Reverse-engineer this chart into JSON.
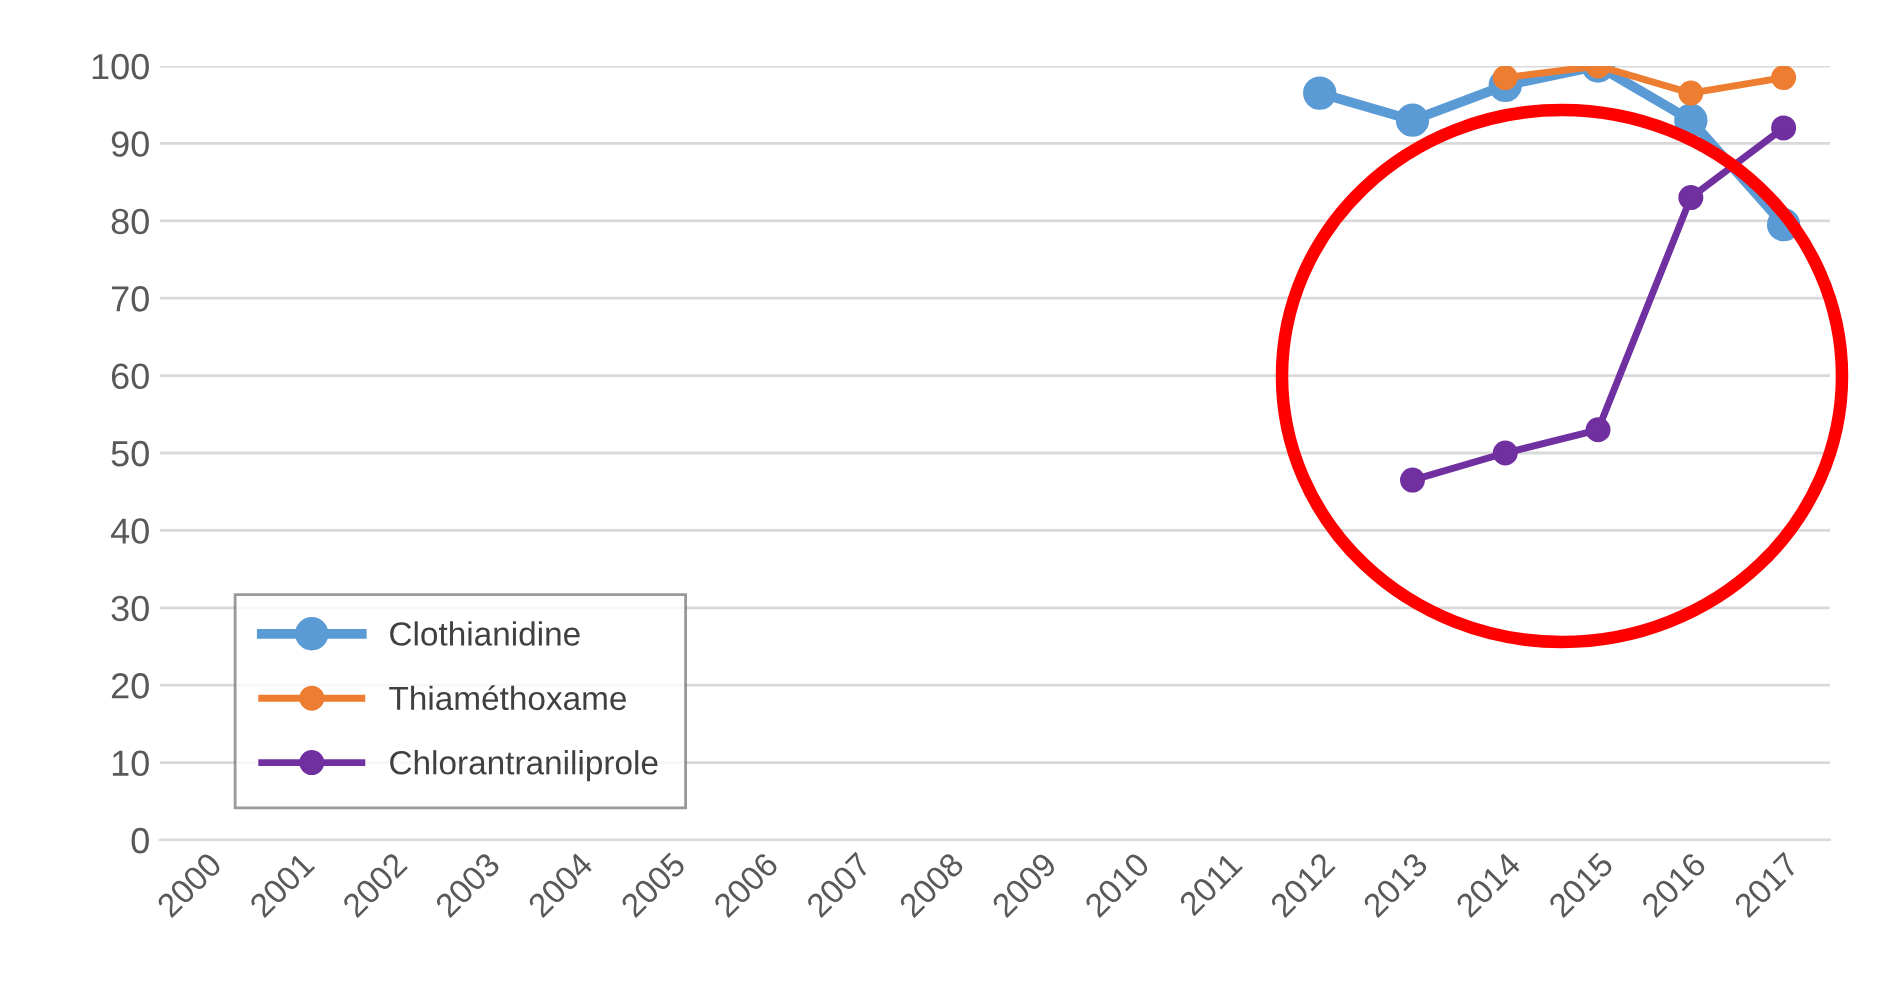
{
  "chart_data": {
    "type": "line",
    "categories": [
      "2000",
      "2001",
      "2002",
      "2003",
      "2004",
      "2005",
      "2006",
      "2007",
      "2008",
      "2009",
      "2010",
      "2011",
      "2012",
      "2013",
      "2014",
      "2015",
      "2016",
      "2017"
    ],
    "series": [
      {
        "name": "Clothianidine",
        "color": "#5b9bd5",
        "values": [
          null,
          null,
          null,
          null,
          null,
          null,
          null,
          null,
          null,
          null,
          null,
          null,
          96.5,
          93,
          97.5,
          100,
          93,
          79.5
        ]
      },
      {
        "name": "Thiaméthoxame",
        "color": "#ed7d31",
        "values": [
          null,
          null,
          null,
          null,
          null,
          null,
          null,
          null,
          null,
          null,
          null,
          null,
          null,
          null,
          98.5,
          100,
          96.5,
          98.5
        ]
      },
      {
        "name": "Chlorantraniliprole",
        "color": "#7030a0",
        "values": [
          null,
          null,
          null,
          null,
          null,
          null,
          null,
          null,
          null,
          null,
          null,
          null,
          null,
          46.5,
          50,
          53,
          83,
          92
        ]
      }
    ],
    "ylim": [
      0,
      100
    ],
    "yticks": [
      0,
      10,
      20,
      30,
      40,
      50,
      60,
      70,
      80,
      90,
      100
    ],
    "grid": "y",
    "legend": "bottom left",
    "marker": "circle",
    "line_style": "solid"
  }
}
